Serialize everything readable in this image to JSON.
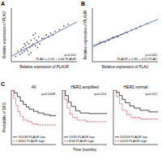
{
  "chart_data": [
    {
      "type": "scatter",
      "panel": "A",
      "xlabel": "Relative expression of PLAUR",
      "ylabel": "Relative expression of PLAU",
      "annotations": [
        "p<0.001",
        "PLAU = 0.31 + 0.64 PLAUR"
      ],
      "xlim": [
        0,
        3
      ],
      "ylim": [
        0,
        3
      ],
      "tick_labels": false,
      "series": [
        {
          "type": "scatter",
          "color": "#222222",
          "marker": "circle",
          "x": [
            0.2,
            0.3,
            0.4,
            0.45,
            0.5,
            0.55,
            0.6,
            0.65,
            0.7,
            0.72,
            0.75,
            0.8,
            0.85,
            0.9,
            0.95,
            1.0,
            1.05,
            1.1,
            1.15,
            1.2,
            1.25,
            1.3,
            1.4,
            1.5,
            1.6,
            1.7,
            1.8,
            1.9,
            2.0,
            2.2,
            2.4,
            2.6,
            0.9,
            1.0,
            1.2,
            0.6,
            0.8,
            1.1
          ],
          "values": [
            0.3,
            0.6,
            0.4,
            0.7,
            0.5,
            0.8,
            0.6,
            0.9,
            0.7,
            1.1,
            0.6,
            1.0,
            0.8,
            1.2,
            0.9,
            1.0,
            1.3,
            0.9,
            1.2,
            1.1,
            1.4,
            1.0,
            1.3,
            1.3,
            1.5,
            1.4,
            1.6,
            1.5,
            1.7,
            1.8,
            2.0,
            2.1,
            0.5,
            1.5,
            0.8,
            1.0,
            0.4,
            1.6
          ]
        },
        {
          "type": "line",
          "color": "#3a5fcd",
          "line_style": "solid",
          "x": [
            0,
            3
          ],
          "values": [
            0.31,
            2.23
          ]
        }
      ]
    },
    {
      "type": "scatter",
      "panel": "B",
      "xlabel": "Relative expression of PLAU",
      "ylabel": "Relative expression of PLAUR",
      "annotations": [
        "p<0.001",
        "PLAUR = 0.85 + 0.51 PLAU"
      ],
      "xlim": [
        0,
        3
      ],
      "ylim": [
        0,
        3
      ],
      "tick_labels": false,
      "series": [
        {
          "type": "scatter",
          "color": "#222222",
          "marker": "circle",
          "x": [
            0.1,
            0.2,
            0.3,
            0.4,
            0.5,
            0.6,
            0.7,
            0.8,
            0.9,
            1.0,
            1.1,
            1.2,
            1.3,
            1.4,
            1.5,
            1.6,
            1.8,
            2.0,
            2.2,
            2.5,
            0.35,
            0.55,
            0.75,
            0.95,
            1.15
          ],
          "values": [
            0.9,
            0.97,
            1.0,
            1.08,
            1.12,
            1.14,
            1.22,
            1.25,
            1.33,
            1.34,
            1.43,
            1.44,
            1.52,
            1.55,
            1.63,
            1.64,
            1.78,
            1.85,
            1.99,
            2.12,
            1.07,
            1.1,
            1.2,
            1.36,
            1.4
          ]
        },
        {
          "type": "line",
          "color": "#3a5fcd",
          "line_style": "solid",
          "x": [
            0,
            3
          ],
          "values": [
            0.85,
            2.38
          ]
        }
      ]
    },
    {
      "type": "step",
      "panel": "C",
      "title": "All",
      "ylabel": "Probability of DFS",
      "annotations": [
        "p=0.0008"
      ],
      "xlim": [
        0,
        150
      ],
      "ylim": [
        0,
        1
      ],
      "tick_labels": false,
      "legend": "lower left",
      "series": [
        {
          "name": "70/138 PLAUR low",
          "color": "#000000",
          "line_style": "solid",
          "x": [
            0,
            10,
            20,
            30,
            40,
            50,
            60,
            75,
            90,
            110,
            130,
            150
          ],
          "values": [
            1,
            0.95,
            0.88,
            0.8,
            0.74,
            0.69,
            0.65,
            0.61,
            0.58,
            0.55,
            0.53,
            0.53
          ]
        },
        {
          "name": "18/41 PLAUR high",
          "color": "#d62728",
          "line_style": "dashed",
          "x": [
            0,
            8,
            15,
            22,
            30,
            40,
            55,
            70,
            90,
            120,
            150
          ],
          "values": [
            1,
            0.85,
            0.72,
            0.6,
            0.52,
            0.45,
            0.42,
            0.38,
            0.36,
            0.36,
            0.36
          ]
        }
      ]
    },
    {
      "type": "step",
      "title": "HER2 amplified",
      "xlabel": "Time (months)",
      "annotations": [
        "p=0.214"
      ],
      "xlim": [
        0,
        150
      ],
      "ylim": [
        0,
        1
      ],
      "tick_labels": false,
      "legend": "lower left",
      "series": [
        {
          "name": "15/35 PLAUR low",
          "color": "#000000",
          "line_style": "solid",
          "x": [
            0,
            10,
            20,
            30,
            45,
            60,
            90,
            150
          ],
          "values": [
            1,
            0.9,
            0.78,
            0.7,
            0.62,
            0.58,
            0.57,
            0.57
          ]
        },
        {
          "name": "8/18 PLAUR high",
          "color": "#d62728",
          "line_style": "dashed",
          "x": [
            0,
            8,
            16,
            25,
            35,
            50,
            80,
            150
          ],
          "values": [
            1,
            0.83,
            0.67,
            0.56,
            0.5,
            0.45,
            0.42,
            0.42
          ]
        }
      ]
    },
    {
      "type": "step",
      "title": "HER2 normal",
      "annotations": [
        "p=0.012"
      ],
      "xlim": [
        0,
        150
      ],
      "ylim": [
        0,
        1
      ],
      "tick_labels": false,
      "legend": "lower left",
      "series": [
        {
          "name": "55/103 PLAUR low",
          "color": "#000000",
          "line_style": "solid",
          "x": [
            0,
            10,
            20,
            30,
            40,
            55,
            70,
            90,
            120,
            150
          ],
          "values": [
            1,
            0.96,
            0.9,
            0.83,
            0.77,
            0.71,
            0.67,
            0.63,
            0.6,
            0.6
          ]
        },
        {
          "name": "10/23 PLAUR high",
          "color": "#d62728",
          "line_style": "dashed",
          "x": [
            0,
            10,
            20,
            30,
            45,
            60,
            90,
            150
          ],
          "values": [
            1,
            0.88,
            0.75,
            0.63,
            0.55,
            0.5,
            0.47,
            0.47
          ]
        }
      ]
    }
  ]
}
